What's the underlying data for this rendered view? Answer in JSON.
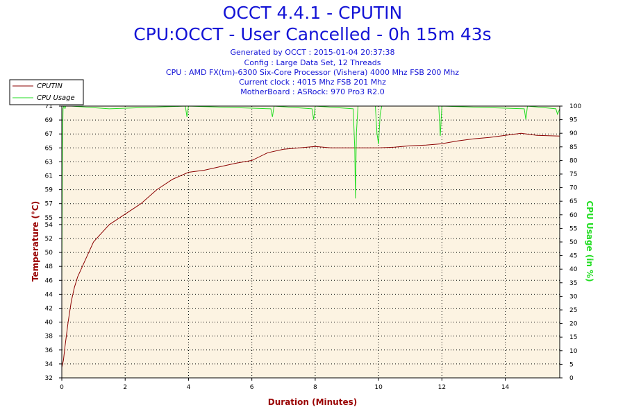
{
  "chart_data": {
    "type": "line",
    "title": "OCCT 4.4.1 - CPUTIN",
    "subtitle": "CPU:OCCT - User Cancelled - 0h 15m 43s",
    "info_lines": [
      "Generated by OCCT : 2015-01-04 20:37:38",
      "Config : Large Data Set, 12 Threads",
      "CPU : AMD FX(tm)-6300 Six-Core Processor (Vishera) 4000 Mhz FSB 200 Mhz",
      "Current clock : 4015 Mhz FSB 201 Mhz",
      "MotherBoard : ASRock: 970 Pro3 R2.0"
    ],
    "xlabel": "Duration (Minutes)",
    "ylabel": "Temperature (°C)",
    "y2label": "CPU Usage (in %)",
    "xlim": [
      0,
      15.72
    ],
    "ylim": [
      32,
      71
    ],
    "y2lim": [
      0,
      100
    ],
    "x_ticks": [
      0,
      2,
      4,
      6,
      8,
      10,
      12,
      14
    ],
    "y_ticks": [
      32,
      34,
      36,
      38,
      40,
      42,
      44,
      46,
      48,
      50,
      52,
      54,
      55,
      57,
      59,
      61,
      63,
      65,
      67,
      69,
      71
    ],
    "y_tick_labels": [
      "32",
      "34",
      "36",
      "38",
      "40",
      "42",
      "44",
      "46",
      "48",
      "50",
      "52",
      "54",
      "55",
      "57",
      "59",
      "61",
      "63",
      "65",
      "67",
      "69",
      "71"
    ],
    "y2_ticks": [
      0,
      5,
      10,
      15,
      20,
      25,
      30,
      35,
      40,
      45,
      50,
      55,
      60,
      65,
      70,
      75,
      80,
      85,
      90,
      95,
      100
    ],
    "grid": true,
    "legend_position": "top-left",
    "colors": {
      "temperature": "#8b0000",
      "usage": "#22dd22",
      "plot_bg": "#fcf3e2",
      "axis_label": "#990000",
      "y2_label": "#22dd22"
    },
    "series": [
      {
        "name": "CPUTIN",
        "axis": "left",
        "x": [
          0,
          0.05,
          0.1,
          0.2,
          0.3,
          0.4,
          0.5,
          0.6,
          0.8,
          1.0,
          1.2,
          1.5,
          2.0,
          2.5,
          3.0,
          3.5,
          4.0,
          4.5,
          5.0,
          5.5,
          6.0,
          6.5,
          7.0,
          7.5,
          8.0,
          8.5,
          9.0,
          9.5,
          10.0,
          10.5,
          11.0,
          11.5,
          12.0,
          12.5,
          13.0,
          13.5,
          14.0,
          14.5,
          15.0,
          15.72
        ],
        "values": [
          33.5,
          34.5,
          36.5,
          40.0,
          43.0,
          45.0,
          46.5,
          47.5,
          49.5,
          51.5,
          52.5,
          54.0,
          55.5,
          57.0,
          59.0,
          60.5,
          61.5,
          61.8,
          62.3,
          62.8,
          63.2,
          64.3,
          64.8,
          65.0,
          65.2,
          65.0,
          65.0,
          65.0,
          65.0,
          65.1,
          65.3,
          65.4,
          65.6,
          66.0,
          66.3,
          66.5,
          66.8,
          67.1,
          66.8,
          66.7
        ]
      },
      {
        "name": "CPU Usage",
        "axis": "right",
        "x": [
          0,
          0.02,
          0.04,
          0.06,
          0.08,
          0.1,
          0.12,
          0.3,
          1.5,
          3.9,
          3.95,
          4.0,
          6.6,
          6.65,
          6.7,
          7.9,
          7.95,
          8.0,
          9.2,
          9.25,
          9.27,
          9.3,
          9.35,
          9.9,
          9.95,
          10.0,
          10.05,
          10.1,
          11.9,
          11.95,
          12.0,
          14.6,
          14.65,
          14.7,
          15.6,
          15.65,
          15.72
        ],
        "values": [
          35,
          85,
          99,
          100,
          100,
          99,
          100,
          100,
          99,
          100,
          96,
          100,
          99,
          96,
          100,
          99,
          95,
          100,
          99,
          84,
          66,
          90,
          100,
          100,
          90,
          86,
          97,
          100,
          100,
          89,
          100,
          99,
          95,
          100,
          99,
          97,
          99
        ]
      }
    ]
  }
}
